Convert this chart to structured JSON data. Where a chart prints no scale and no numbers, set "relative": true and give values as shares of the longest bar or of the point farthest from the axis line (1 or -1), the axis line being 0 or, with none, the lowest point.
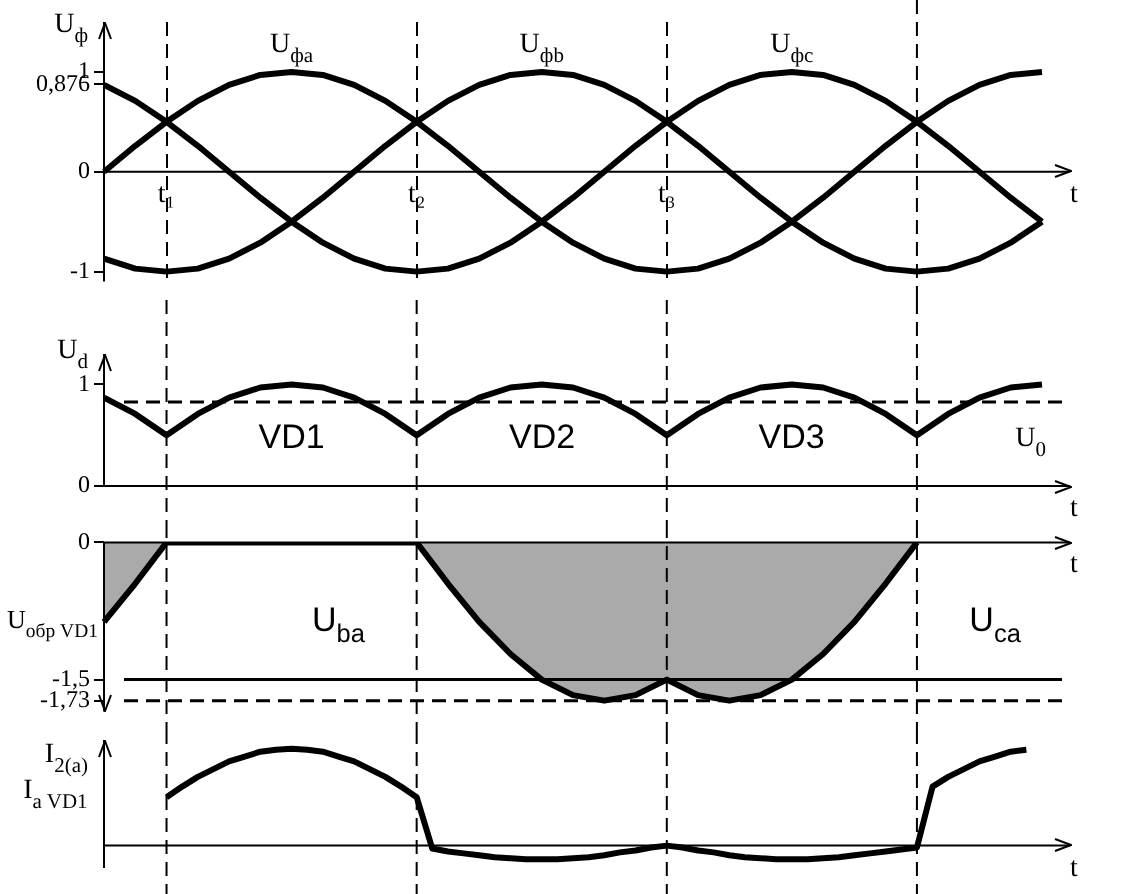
{
  "chart_data": [
    {
      "type": "line",
      "ylabel": "U$_{ф}$",
      "xlabel": "t",
      "categories": [
        null,
        null,
        "t₁",
        null,
        null,
        null,
        null,
        null,
        null,
        null,
        "t₂",
        null,
        null,
        null,
        null,
        null,
        null,
        null,
        "t₃",
        null,
        null,
        null,
        null,
        null,
        null,
        null,
        null,
        null,
        null,
        null,
        null
      ],
      "ylim": [
        -1.1,
        1.5
      ],
      "yticks": [
        -1,
        0,
        {
          "value": 0.876,
          "label": "0,876"
        },
        1
      ],
      "series": [
        {
          "name": "U$_{фa}$",
          "color": "#000000",
          "values": [
            0,
            0.26,
            0.5,
            0.71,
            0.87,
            0.97,
            1,
            0.97,
            0.87,
            0.71,
            0.5,
            0.26,
            0,
            -0.26,
            -0.5,
            -0.71,
            -0.87,
            -0.97,
            -1,
            -0.97,
            -0.87,
            -0.71,
            -0.5,
            -0.26,
            0,
            0.26,
            0.5,
            0.71,
            0.87,
            0.97,
            1
          ]
        },
        {
          "name": "U$_{фb}$",
          "color": "#000000",
          "values": [
            -0.87,
            -0.97,
            -1,
            -0.97,
            -0.87,
            -0.71,
            -0.5,
            -0.26,
            0,
            0.26,
            0.5,
            0.71,
            0.87,
            0.97,
            1,
            0.97,
            0.87,
            0.71,
            0.5,
            0.26,
            0,
            -0.26,
            -0.5,
            -0.71,
            -0.87,
            -0.97,
            -1,
            -0.97,
            -0.87,
            -0.71,
            -0.5
          ]
        },
        {
          "name": "U$_{фc}$",
          "color": "#000000",
          "values": [
            0.87,
            0.71,
            0.5,
            0.26,
            0,
            -0.26,
            -0.5,
            -0.71,
            -0.87,
            -0.97,
            -1,
            -0.97,
            -0.87,
            -0.71,
            -0.5,
            -0.26,
            0,
            0.26,
            0.5,
            0.71,
            0.87,
            0.97,
            1,
            0.97,
            0.87,
            0.71,
            0.5,
            0.26,
            0,
            -0.26,
            -0.5
          ]
        }
      ],
      "grid": "x",
      "legend": false,
      "marker": "none",
      "line_style": "solid"
    },
    {
      "type": "line",
      "ylabel": "U$_{d}$",
      "xlabel": "t",
      "categories": [
        null,
        null,
        null,
        null,
        null,
        null,
        null,
        null,
        null,
        null,
        null,
        null,
        null,
        null,
        null,
        null,
        null,
        null,
        null,
        null,
        null,
        null,
        null,
        null,
        null,
        null,
        null,
        null,
        null,
        null,
        null
      ],
      "ylim": [
        0,
        1.3
      ],
      "yticks": [
        0,
        1
      ],
      "series": [
        {
          "color": "#000000",
          "values": [
            0.87,
            0.71,
            0.5,
            0.71,
            0.87,
            0.97,
            1,
            0.97,
            0.87,
            0.71,
            0.5,
            0.71,
            0.87,
            0.97,
            1,
            0.97,
            0.87,
            0.71,
            0.5,
            0.71,
            0.87,
            0.97,
            1,
            0.97,
            0.87,
            0.71,
            0.5,
            0.71,
            0.87,
            0.97,
            1
          ]
        }
      ],
      "ref_lines": [
        {
          "axis": "y",
          "value": 0.827,
          "label": "U$_{0}$",
          "line_style": "dashed"
        }
      ],
      "annotations": [
        "VD1",
        "VD2",
        "VD3"
      ],
      "grid": "x",
      "legend": false,
      "marker": "none",
      "line_style": "solid"
    },
    {
      "type": "area",
      "ylabel": "U$_{обр VD1}$",
      "xlabel": "t",
      "categories": [
        null,
        null,
        null,
        null,
        null,
        null,
        null,
        null,
        null,
        null,
        null,
        null,
        null,
        null,
        null,
        null,
        null,
        null,
        null,
        null,
        null,
        null,
        null,
        null,
        null,
        null,
        null,
        null,
        null,
        null,
        null
      ],
      "ylim": [
        -1.85,
        0
      ],
      "yticks": [
        0,
        {
          "value": -1.5,
          "label": "-1,5"
        },
        {
          "value": -1.73,
          "label": "-1,73"
        }
      ],
      "series": [
        {
          "color": "#000000",
          "values": [
            -0.87,
            -0.45,
            0,
            0,
            0,
            0,
            0,
            0,
            0,
            0,
            0,
            -0.45,
            -0.87,
            -1.22,
            -1.5,
            -1.67,
            -1.73,
            -1.67,
            -1.5,
            -1.67,
            -1.73,
            -1.67,
            -1.5,
            -1.22,
            -0.87,
            -0.45,
            0,
            null,
            null,
            null,
            null
          ]
        }
      ],
      "ref_lines": [
        {
          "axis": "y",
          "value": -1.5,
          "line_style": "solid"
        },
        {
          "axis": "y",
          "value": -1.73,
          "line_style": "dashed"
        }
      ],
      "annotations": [
        "U$_{ba}$",
        "U$_{ca}$"
      ],
      "grid": "x",
      "legend": false,
      "marker": "none",
      "line_style": "solid"
    },
    {
      "type": "line",
      "ylabel": "I$_{2(a)}$\nI$_{a VD1}$",
      "xlabel": "t",
      "relative": true,
      "tick_labels": false,
      "categories": [
        null,
        null,
        null,
        null,
        null,
        null,
        null,
        null,
        null,
        null,
        null,
        null,
        null,
        null,
        null,
        null,
        null,
        null,
        null,
        null,
        null,
        null,
        null,
        null,
        null,
        null,
        null,
        null,
        null,
        null,
        null,
        null,
        null,
        null,
        null,
        null,
        null,
        null,
        null,
        null,
        null,
        null,
        null,
        null,
        null,
        null,
        null,
        null,
        null,
        null,
        null,
        null,
        null,
        null,
        null,
        null,
        null,
        null,
        null,
        null,
        null
      ],
      "series": [
        {
          "color": "#000000",
          "values": [
            null,
            null,
            null,
            null,
            0.5,
            0.61,
            0.71,
            0.79,
            0.87,
            0.92,
            0.97,
            0.99,
            1,
            0.99,
            0.97,
            0.92,
            0.87,
            0.79,
            0.71,
            0.61,
            0.5,
            -0.03,
            -0.06,
            -0.08,
            -0.1,
            -0.12,
            -0.13,
            -0.14,
            -0.14,
            -0.14,
            -0.13,
            -0.12,
            -0.1,
            -0.07,
            -0.05,
            -0.02,
            0,
            -0.02,
            -0.05,
            -0.07,
            -0.1,
            -0.12,
            -0.13,
            -0.14,
            -0.14,
            -0.14,
            -0.13,
            -0.12,
            -0.1,
            -0.08,
            -0.06,
            -0.04,
            -0.02,
            0.61,
            0.71,
            0.79,
            0.87,
            0.92,
            0.97,
            0.99,
            null
          ]
        }
      ],
      "grid": "x",
      "legend": false,
      "marker": "none",
      "line_style": "solid"
    }
  ]
}
